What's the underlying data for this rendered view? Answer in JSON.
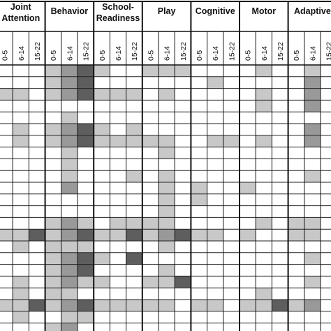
{
  "chart_data": {
    "type": "heatmap",
    "domains": [
      {
        "title_lines": [
          "Joint",
          "Attention"
        ],
        "age_groups": [
          "0-5",
          "6-14",
          "15-22"
        ]
      },
      {
        "title_lines": [
          "Behavior"
        ],
        "age_groups": [
          "0-5",
          "6-14",
          "15-22"
        ]
      },
      {
        "title_lines": [
          "School-",
          "Readiness"
        ],
        "age_groups": [
          "0-5",
          "6-14",
          "15-22"
        ]
      },
      {
        "title_lines": [
          "Play"
        ],
        "age_groups": [
          "0-5",
          "6-14",
          "15-22"
        ]
      },
      {
        "title_lines": [
          "Cognitive"
        ],
        "age_groups": [
          "0-5",
          "6-14",
          "15-22"
        ]
      },
      {
        "title_lines": [
          "Motor"
        ],
        "age_groups": [
          "0-5",
          "6-14",
          "15-22"
        ]
      },
      {
        "title_lines": [
          "Adaptive"
        ],
        "age_groups": [
          "0-5",
          "6-14",
          "15-22"
        ]
      }
    ],
    "legend": "none",
    "grid": true,
    "levels": {
      "0": "#ffffff",
      "1": "#c8c8c8",
      "2": "#999999",
      "3": "#5e5e5e"
    },
    "rows": [
      [
        0,
        0,
        0,
        1,
        2,
        3,
        1,
        0,
        0,
        1,
        1,
        1,
        0,
        0,
        0,
        0,
        1,
        0,
        0,
        1,
        0
      ],
      [
        0,
        0,
        0,
        1,
        2,
        3,
        0,
        0,
        0,
        0,
        0,
        0,
        0,
        1,
        0,
        0,
        0,
        0,
        0,
        2,
        0
      ],
      [
        1,
        1,
        0,
        1,
        2,
        3,
        1,
        1,
        1,
        0,
        1,
        0,
        0,
        0,
        0,
        0,
        1,
        0,
        0,
        2,
        0
      ],
      [
        0,
        0,
        0,
        0,
        0,
        0,
        0,
        0,
        0,
        0,
        0,
        0,
        0,
        0,
        0,
        0,
        1,
        0,
        0,
        2,
        0
      ],
      [
        0,
        0,
        0,
        0,
        1,
        0,
        0,
        0,
        0,
        0,
        0,
        0,
        0,
        0,
        0,
        0,
        0,
        0,
        0,
        0,
        0
      ],
      [
        0,
        1,
        0,
        1,
        2,
        3,
        1,
        0,
        1,
        0,
        0,
        0,
        0,
        0,
        0,
        0,
        0,
        0,
        0,
        2,
        0
      ],
      [
        0,
        1,
        0,
        1,
        2,
        3,
        1,
        1,
        1,
        1,
        1,
        0,
        0,
        1,
        1,
        0,
        1,
        0,
        0,
        2,
        0
      ],
      [
        0,
        0,
        0,
        0,
        1,
        0,
        0,
        0,
        0,
        0,
        1,
        0,
        0,
        0,
        0,
        0,
        0,
        0,
        0,
        0,
        0
      ],
      [
        0,
        0,
        0,
        0,
        1,
        0,
        0,
        0,
        0,
        0,
        0,
        0,
        0,
        0,
        0,
        0,
        0,
        0,
        0,
        0,
        0
      ],
      [
        0,
        0,
        0,
        0,
        1,
        0,
        0,
        0,
        1,
        0,
        1,
        0,
        0,
        0,
        0,
        0,
        0,
        0,
        0,
        1,
        0
      ],
      [
        0,
        0,
        0,
        0,
        2,
        0,
        0,
        0,
        0,
        0,
        1,
        0,
        1,
        0,
        0,
        1,
        0,
        0,
        0,
        0,
        0
      ],
      [
        0,
        0,
        0,
        0,
        0,
        0,
        0,
        0,
        0,
        0,
        1,
        0,
        1,
        0,
        0,
        0,
        0,
        0,
        0,
        0,
        0
      ],
      [
        0,
        0,
        0,
        0,
        0,
        0,
        0,
        0,
        0,
        0,
        1,
        0,
        0,
        0,
        0,
        0,
        0,
        0,
        0,
        0,
        0
      ],
      [
        0,
        0,
        0,
        1,
        2,
        1,
        0,
        1,
        1,
        1,
        1,
        0,
        0,
        0,
        0,
        0,
        1,
        0,
        1,
        1,
        0
      ],
      [
        1,
        1,
        3,
        1,
        2,
        3,
        1,
        1,
        3,
        1,
        2,
        3,
        1,
        1,
        0,
        1,
        0,
        0,
        1,
        1,
        0
      ],
      [
        0,
        1,
        0,
        1,
        1,
        1,
        0,
        0,
        0,
        0,
        1,
        0,
        0,
        0,
        0,
        0,
        0,
        0,
        0,
        0,
        0
      ],
      [
        0,
        0,
        0,
        1,
        2,
        3,
        1,
        0,
        3,
        0,
        0,
        0,
        0,
        0,
        0,
        0,
        0,
        0,
        0,
        1,
        0
      ],
      [
        0,
        0,
        0,
        1,
        2,
        3,
        0,
        0,
        0,
        0,
        1,
        0,
        0,
        0,
        0,
        0,
        0,
        0,
        0,
        0,
        0
      ],
      [
        0,
        1,
        0,
        1,
        2,
        1,
        1,
        0,
        0,
        1,
        1,
        3,
        0,
        0,
        0,
        0,
        0,
        0,
        0,
        1,
        0
      ],
      [
        0,
        1,
        0,
        1,
        1,
        0,
        0,
        0,
        0,
        0,
        0,
        0,
        0,
        0,
        0,
        0,
        1,
        0,
        0,
        0,
        0
      ],
      [
        1,
        1,
        3,
        1,
        2,
        3,
        1,
        1,
        1,
        1,
        1,
        0,
        1,
        1,
        0,
        1,
        1,
        3,
        1,
        2,
        0
      ],
      [
        0,
        1,
        0,
        0,
        1,
        1,
        0,
        0,
        0,
        0,
        0,
        0,
        0,
        0,
        0,
        0,
        0,
        0,
        0,
        0,
        0
      ],
      [
        0,
        0,
        0,
        1,
        2,
        0,
        0,
        0,
        0,
        0,
        0,
        0,
        0,
        0,
        0,
        0,
        0,
        0,
        0,
        0,
        0
      ]
    ]
  }
}
